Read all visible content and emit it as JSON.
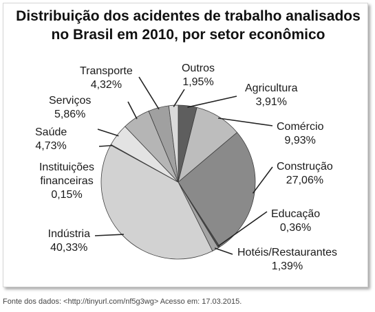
{
  "title_line1": "Distribuição dos acidentes de trabalho analisados",
  "title_line2": "no Brasil em 2010, por setor econômico",
  "source": "Fonte dos dados: <http://tinyurl.com/nf5g3wg> Acesso em: 17.03.2015.",
  "chart_data": {
    "type": "pie",
    "title": "Distribuição dos acidentes de trabalho analisados no Brasil em 2010, por setor econômico",
    "slices": [
      {
        "name": "Agricultura",
        "value": 3.91,
        "label": "3,91%",
        "color": "#5e5e5e"
      },
      {
        "name": "Comércio",
        "value": 9.93,
        "label": "9,93%",
        "color": "#bdbdbd"
      },
      {
        "name": "Construção",
        "value": 27.06,
        "label": "27,06%",
        "color": "#8a8a8a"
      },
      {
        "name": "Educação",
        "value": 0.36,
        "label": "0,36%",
        "color": "#4a4a4a"
      },
      {
        "name": "Hotéis/Restaurantes",
        "value": 1.39,
        "label": "1,39%",
        "color": "#a4a4a4"
      },
      {
        "name": "Indústria",
        "value": 40.33,
        "label": "40,33%",
        "color": "#d2d2d2"
      },
      {
        "name": "Instituições financeiras",
        "value": 0.15,
        "label": "0,15%",
        "color": "#3a3a3a"
      },
      {
        "name": "Saúde",
        "value": 4.73,
        "label": "4,73%",
        "color": "#e3e3e3"
      },
      {
        "name": "Serviços",
        "value": 5.86,
        "label": "5,86%",
        "color": "#b5b5b5"
      },
      {
        "name": "Transporte",
        "value": 4.32,
        "label": "4,32%",
        "color": "#a0a0a0"
      },
      {
        "name": "Outros",
        "value": 1.95,
        "label": "1,95%",
        "color": "#dadada"
      }
    ],
    "label_lines": [
      [
        "Agricultura",
        "3,91%"
      ],
      [
        "Comércio",
        "9,93%"
      ],
      [
        "Construção",
        "27,06%"
      ],
      [
        "Educação",
        "0,36%"
      ],
      [
        "Hotéis/Restaurantes",
        "1,39%"
      ],
      [
        "Indústria",
        "40,33%"
      ],
      [
        "Instituições",
        "financeiras",
        "0,15%"
      ],
      [
        "Saúde",
        "4,73%"
      ],
      [
        "Serviços",
        "5,86%"
      ],
      [
        "Transporte",
        "4,32%"
      ],
      [
        "Outros",
        "1,95%"
      ]
    ]
  }
}
